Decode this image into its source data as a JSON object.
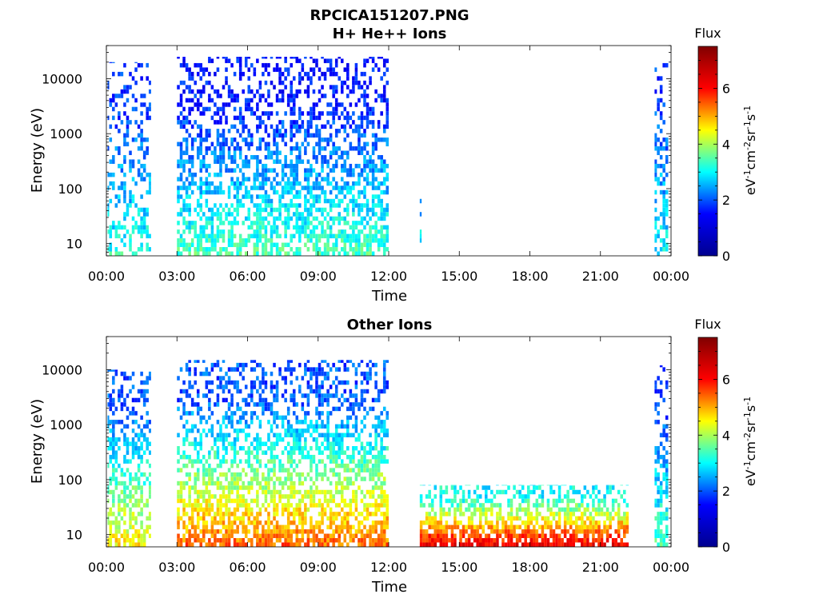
{
  "figure": {
    "title": "RPCICA151207.PNG",
    "colorbar_label": "Flux",
    "colorbar_unit": {
      "eV": "eV",
      "eV_exp": "-1",
      "cm": "cm",
      "cm_exp": "-2",
      "sr": "sr",
      "sr_exp": "-1",
      "s": "s",
      "s_exp": "-1"
    }
  },
  "colormap": [
    "#00008f",
    "#0000ff",
    "#00ffff",
    "#ffff00",
    "#ff0000",
    "#800000"
  ],
  "chart_data": [
    {
      "type": "heatmap",
      "title": "H+ He++ Ions",
      "xlabel": "Time",
      "ylabel": "Energy (eV)",
      "x_unit": "hours",
      "xlim": [
        0,
        24
      ],
      "x_ticks": [
        0,
        3,
        6,
        9,
        12,
        15,
        18,
        21,
        24
      ],
      "x_tick_labels": [
        "00:00",
        "03:00",
        "06:00",
        "09:00",
        "12:00",
        "15:00",
        "18:00",
        "21:00",
        "00:00"
      ],
      "y_scale": "log",
      "ylim": [
        6,
        40000
      ],
      "y_ticks": [
        10,
        100,
        1000,
        10000
      ],
      "y_tick_labels": [
        "10",
        "100",
        "1000",
        "10000"
      ],
      "clim": [
        0,
        7.5
      ],
      "c_ticks": [
        0,
        2,
        4,
        6
      ],
      "c_tick_labels": [
        "0",
        "2",
        "4",
        "6"
      ],
      "segments": [
        {
          "t_start": 0.05,
          "t_end": 1.9,
          "e_top": 20000,
          "flux_low": 3.2,
          "flux_high": 1.8,
          "density": 0.45
        },
        {
          "t_start": 3.0,
          "t_end": 12.0,
          "e_top": 25000,
          "flux_low": 3.4,
          "flux_high": 1.6,
          "density": 0.65
        },
        {
          "t_start": 13.3,
          "t_end": 13.4,
          "e_top": 80,
          "flux_low": 3.0,
          "flux_high": 2.6,
          "density": 0.5
        },
        {
          "t_start": 23.3,
          "t_end": 23.9,
          "e_top": 25000,
          "flux_low": 3.0,
          "flux_high": 1.8,
          "density": 0.55
        }
      ]
    },
    {
      "type": "heatmap",
      "title": "Other Ions",
      "xlabel": "Time",
      "ylabel": "Energy (eV)",
      "x_unit": "hours",
      "xlim": [
        0,
        24
      ],
      "x_ticks": [
        0,
        3,
        6,
        9,
        12,
        15,
        18,
        21,
        24
      ],
      "x_tick_labels": [
        "00:00",
        "03:00",
        "06:00",
        "09:00",
        "12:00",
        "15:00",
        "18:00",
        "21:00",
        "00:00"
      ],
      "y_scale": "log",
      "ylim": [
        6,
        40000
      ],
      "y_ticks": [
        10,
        100,
        1000,
        10000
      ],
      "y_tick_labels": [
        "10",
        "100",
        "1000",
        "10000"
      ],
      "clim": [
        0,
        7.5
      ],
      "c_ticks": [
        0,
        2,
        4,
        6
      ],
      "c_tick_labels": [
        "0",
        "2",
        "4",
        "6"
      ],
      "segments": [
        {
          "t_start": 0.05,
          "t_end": 1.9,
          "e_top": 10000,
          "flux_low": 4.6,
          "flux_high": 2.0,
          "density": 0.6
        },
        {
          "t_start": 3.0,
          "t_end": 12.0,
          "e_top": 15000,
          "flux_low": 5.4,
          "flux_high": 2.0,
          "density": 0.7
        },
        {
          "t_start": 13.3,
          "t_end": 22.2,
          "e_top": 80,
          "flux_low": 6.2,
          "flux_high": 3.0,
          "density": 0.85
        },
        {
          "t_start": 23.3,
          "t_end": 23.9,
          "e_top": 12000,
          "flux_low": 3.5,
          "flux_high": 1.8,
          "density": 0.6
        }
      ]
    }
  ]
}
